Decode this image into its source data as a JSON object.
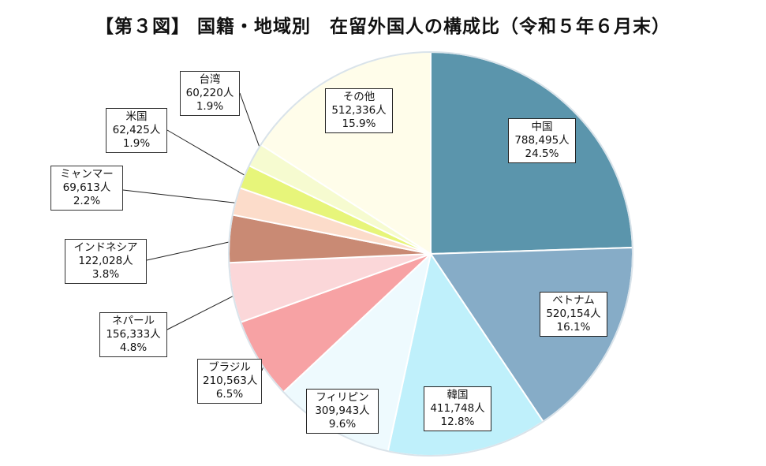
{
  "chart_data": {
    "type": "pie",
    "title": "【第３図】 国籍・地域別　在留外国人の構成比（令和５年６月末）",
    "unit": "人",
    "slices": [
      {
        "name": "中国",
        "count": "788,495人",
        "percent": "24.5%",
        "value": 24.5,
        "color": "#5b95ac"
      },
      {
        "name": "ベトナム",
        "count": "520,154人",
        "percent": "16.1%",
        "value": 16.1,
        "color": "#86acc7"
      },
      {
        "name": "韓国",
        "count": "411,748人",
        "percent": "12.8%",
        "value": 12.8,
        "color": "#bff0fb"
      },
      {
        "name": "フィリピン",
        "count": "309,943人",
        "percent": "9.6%",
        "value": 9.6,
        "color": "#eefafe"
      },
      {
        "name": "ブラジル",
        "count": "210,563人",
        "percent": "6.5%",
        "value": 6.5,
        "color": "#f7a2a4"
      },
      {
        "name": "ネパール",
        "count": "156,333人",
        "percent": "4.8%",
        "value": 4.8,
        "color": "#fbd7d9"
      },
      {
        "name": "インドネシア",
        "count": "122,028人",
        "percent": "3.8%",
        "value": 3.8,
        "color": "#c98a74"
      },
      {
        "name": "ミャンマー",
        "count": "69,613人",
        "percent": "2.2%",
        "value": 2.2,
        "color": "#fcdcca"
      },
      {
        "name": "米国",
        "count": "62,425人",
        "percent": "1.9%",
        "value": 1.9,
        "color": "#e7f57a"
      },
      {
        "name": "台湾",
        "count": "60,220人",
        "percent": "1.9%",
        "value": 1.9,
        "color": "#f6fbd0"
      },
      {
        "name": "その他",
        "count": "512,336人",
        "percent": "15.9%",
        "value": 15.9,
        "color": "#fffdea"
      }
    ]
  }
}
